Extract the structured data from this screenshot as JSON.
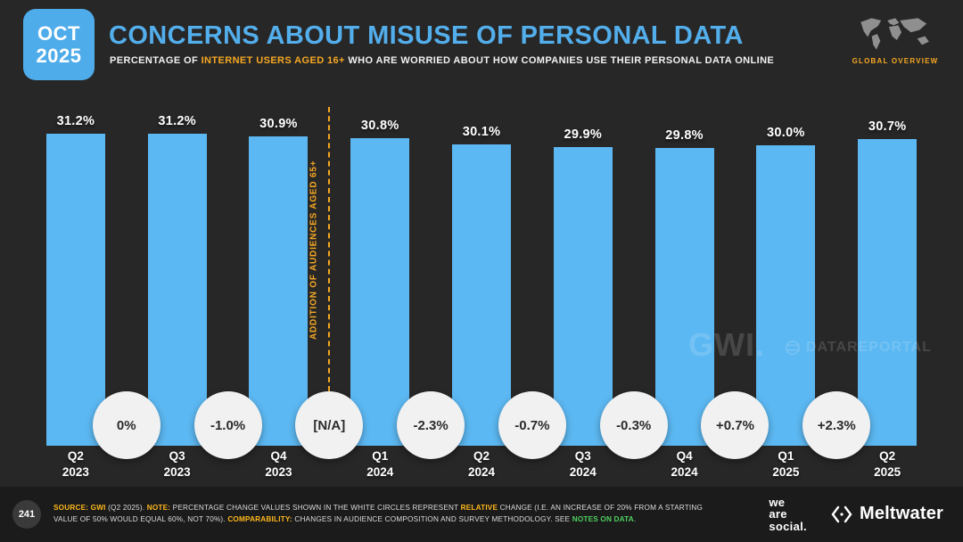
{
  "badge": {
    "line1": "OCT",
    "line2": "2025"
  },
  "header": {
    "title": "CONCERNS ABOUT MISUSE OF PERSONAL DATA",
    "subtitle_prefix": "PERCENTAGE OF ",
    "subtitle_highlight": "INTERNET USERS AGED 16+",
    "subtitle_suffix": " WHO ARE WORRIED ABOUT HOW COMPANIES USE THEIR PERSONAL DATA ONLINE",
    "global_overview": "GLOBAL OVERVIEW"
  },
  "chart_data": {
    "type": "bar",
    "title": "Concerns about misuse of personal data",
    "categories": [
      "Q2 2023",
      "Q3 2023",
      "Q4 2023",
      "Q1 2024",
      "Q2 2024",
      "Q3 2024",
      "Q4 2024",
      "Q1 2025",
      "Q2 2025"
    ],
    "values": [
      31.2,
      31.2,
      30.9,
      30.8,
      30.1,
      29.9,
      29.8,
      30.0,
      30.7
    ],
    "value_suffix": "%",
    "change_labels": [
      "0%",
      "-1.0%",
      "[N/A]",
      "-2.3%",
      "-0.7%",
      "-0.3%",
      "+0.7%",
      "+2.3%"
    ],
    "annotation": {
      "text": "ADDITION OF AUDIENCES AGED 65+",
      "boundary_index": 3
    },
    "ylim": [
      0,
      31.2
    ],
    "bar_color": "#5CB8F2",
    "accent_color": "#F7A823",
    "legend": null
  },
  "watermarks": {
    "gwi": "GWI.",
    "datareportal": "DATAREPORTAL"
  },
  "footer": {
    "page_number": "241",
    "segments": [
      {
        "text": "SOURCE: ",
        "style": "accent"
      },
      {
        "text": "GWI",
        "style": "accent"
      },
      {
        "text": " (Q2 2025). ",
        "style": "plain"
      },
      {
        "text": "NOTE: ",
        "style": "accent"
      },
      {
        "text": "PERCENTAGE CHANGE VALUES SHOWN IN THE WHITE CIRCLES REPRESENT ",
        "style": "plain"
      },
      {
        "text": "RELATIVE",
        "style": "accent"
      },
      {
        "text": " CHANGE (I.E. AN INCREASE OF 20% FROM A STARTING VALUE OF 50% WOULD EQUAL 60%, NOT 70%). ",
        "style": "plain"
      },
      {
        "text": "COMPARABILITY: ",
        "style": "accent"
      },
      {
        "text": "CHANGES IN AUDIENCE COMPOSITION AND SURVEY METHODOLOGY. SEE ",
        "style": "plain"
      },
      {
        "text": "NOTES ON DATA",
        "style": "link"
      },
      {
        "text": ".",
        "style": "plain"
      }
    ],
    "we_are_social": [
      "we",
      "are",
      "social."
    ],
    "meltwater": "Meltwater"
  }
}
